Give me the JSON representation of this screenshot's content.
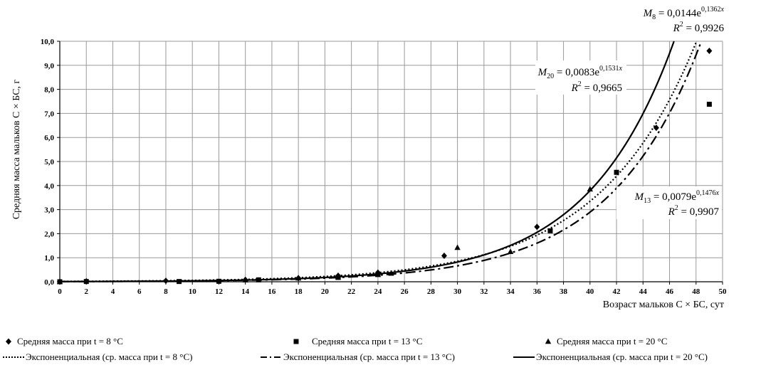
{
  "chart_data": {
    "type": "scatter",
    "title": "",
    "xlabel": "Возраст мальков С × БС, сут",
    "ylabel": "Средняя масса мальков С × БС, г",
    "xlim": [
      0,
      50
    ],
    "ylim": [
      0,
      10
    ],
    "x_ticks": [
      "0",
      "2",
      "4",
      "6",
      "8",
      "10",
      "12",
      "14",
      "16",
      "18",
      "20",
      "22",
      "24",
      "26",
      "28",
      "30",
      "32",
      "34",
      "36",
      "38",
      "40",
      "42",
      "44",
      "46",
      "48",
      "50"
    ],
    "y_ticks": [
      "0,0",
      "1,0",
      "2,0",
      "3,0",
      "4,0",
      "5,0",
      "6,0",
      "7,0",
      "8,0",
      "9,0",
      "10,0"
    ],
    "grid": true,
    "legend_position": "bottom",
    "series": [
      {
        "name": "Средняя масса при t = 8 °C",
        "marker": "diamond",
        "x": [
          0,
          2,
          8,
          14,
          18,
          21,
          24,
          29,
          36,
          45,
          49
        ],
        "y": [
          0.0,
          0.02,
          0.04,
          0.08,
          0.15,
          0.25,
          0.38,
          1.08,
          2.28,
          6.4,
          9.6
        ]
      },
      {
        "name": "Средняя масса при t = 13 °C",
        "marker": "square",
        "x": [
          0,
          2,
          9,
          12,
          15,
          21,
          24,
          37,
          42,
          49
        ],
        "y": [
          0.0,
          0.01,
          0.01,
          0.02,
          0.08,
          0.18,
          0.3,
          2.12,
          4.55,
          7.38
        ]
      },
      {
        "name": "Средняя масса при t = 20 °C",
        "marker": "triangle",
        "x": [
          0,
          14,
          18,
          21,
          24,
          25,
          30,
          34,
          40
        ],
        "y": [
          0.0,
          0.07,
          0.15,
          0.2,
          0.3,
          0.35,
          1.42,
          1.25,
          3.85
        ]
      }
    ],
    "trendlines": [
      {
        "name": "Экспоненциальная (ср. масса при t = 8 °C)",
        "style": "dotted",
        "coef": 0.0144,
        "rate": 0.1362,
        "eq_sub": "8",
        "eq_coef": "0,0144",
        "eq_exp": "0,1362",
        "r2": "0,9926"
      },
      {
        "name": "Экспоненциальная (ср. масса при t = 13 °C)",
        "style": "dash-dot",
        "coef": 0.0079,
        "rate": 0.1476,
        "eq_sub": "13",
        "eq_coef": "0,0079",
        "eq_exp": "0,1476",
        "r2": "0,9907"
      },
      {
        "name": "Экспоненциальная (ср. масса при t = 20 °C)",
        "style": "solid",
        "coef": 0.0083,
        "rate": 0.1531,
        "eq_sub": "20",
        "eq_coef": "0,0083",
        "eq_exp": "0,1531",
        "r2": "0,9665"
      }
    ]
  }
}
